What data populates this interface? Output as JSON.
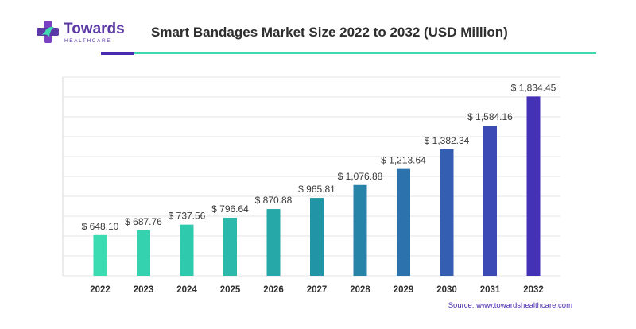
{
  "brand": {
    "name": "Towards",
    "subname": "HEALTHCARE",
    "icon": "medical-cross-icon",
    "colors": {
      "primary": "#5b3aa6",
      "accent": "#3fd9b0"
    }
  },
  "chart_data": {
    "type": "bar",
    "title": "Smart Bandages Market Size 2022 to 2032 (USD Million)",
    "xlabel": "",
    "ylabel": "",
    "categories": [
      "2022",
      "2023",
      "2024",
      "2025",
      "2026",
      "2027",
      "2028",
      "2029",
      "2030",
      "2031",
      "2032"
    ],
    "values": [
      648.1,
      687.76,
      737.56,
      796.64,
      870.88,
      965.81,
      1076.88,
      1213.64,
      1382.34,
      1584.16,
      1834.45
    ],
    "value_labels": [
      "$ 648.10",
      "$ 687.76",
      "$ 737.56",
      "$ 796.64",
      "$ 870.88",
      "$ 965.81",
      "$ 1,076.88",
      "$ 1,213.64",
      "$ 1,382.34",
      "$ 1,584.16",
      "$ 1,834.45"
    ],
    "ylim": [
      300,
      2000
    ],
    "grid": true,
    "legend": "none",
    "colors": [
      "#3bdcb1",
      "#35d2b0",
      "#2fc9ae",
      "#2ab9ab",
      "#26a7a8",
      "#2195a5",
      "#2584a8",
      "#2c72ad",
      "#335eb2",
      "#3b4ab4",
      "#4432b6"
    ]
  },
  "source": "Source: www.towardshealthcare.com"
}
